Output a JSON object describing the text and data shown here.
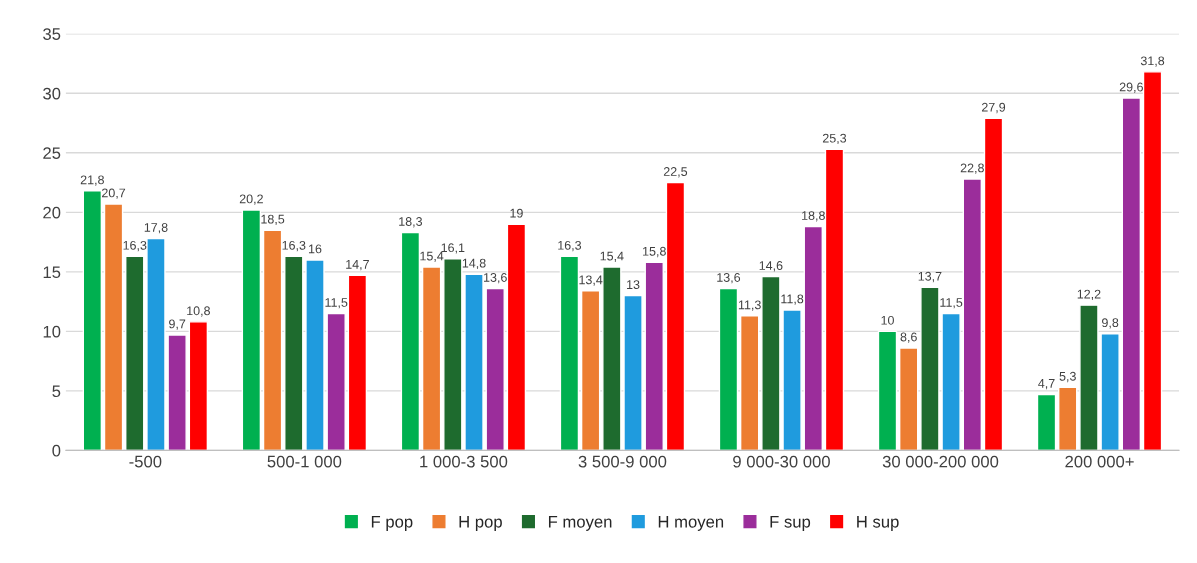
{
  "chart_data": {
    "type": "bar",
    "categories": [
      "-500",
      "500-1 000",
      "1 000-3 500",
      "3 500-9 000",
      "9 000-30 000",
      "30 000-200 000",
      "200 000+"
    ],
    "series": [
      {
        "name": "F pop",
        "color": "#00b050",
        "values": [
          21.8,
          20.2,
          18.3,
          16.3,
          13.6,
          10,
          4.7
        ],
        "value_labels": [
          "21,8",
          "20,2",
          "18,3",
          "16,3",
          "13,6",
          "10",
          "4,7"
        ]
      },
      {
        "name": "H pop",
        "color": "#ed7d31",
        "values": [
          20.7,
          18.5,
          15.4,
          13.4,
          11.3,
          8.6,
          5.3
        ],
        "value_labels": [
          "20,7",
          "18,5",
          "15,4",
          "13,4",
          "11,3",
          "8,6",
          "5,3"
        ]
      },
      {
        "name": "F moyen",
        "color": "#1e6b2e",
        "values": [
          16.3,
          16.3,
          16.1,
          15.4,
          14.6,
          13.7,
          12.2
        ],
        "value_labels": [
          "16,3",
          "16,3",
          "16,1",
          "15,4",
          "14,6",
          "13,7",
          "12,2"
        ]
      },
      {
        "name": "H moyen",
        "color": "#1f9bde",
        "values": [
          17.8,
          16,
          14.8,
          13,
          11.8,
          11.5,
          9.8
        ],
        "value_labels": [
          "17,8",
          "16",
          "14,8",
          "13",
          "11,8",
          "11,5",
          "9,8"
        ]
      },
      {
        "name": "F sup",
        "color": "#9b2d9b",
        "values": [
          9.7,
          11.5,
          13.6,
          15.8,
          18.8,
          22.8,
          29.6
        ],
        "value_labels": [
          "9,7",
          "11,5",
          "13,6",
          "15,8",
          "18,8",
          "22,8",
          "29,6"
        ]
      },
      {
        "name": "H sup",
        "color": "#ff0000",
        "values": [
          10.8,
          14.7,
          19,
          22.5,
          25.3,
          27.9,
          31.8
        ],
        "value_labels": [
          "10,8",
          "14,7",
          "19",
          "22,5",
          "25,3",
          "27,9",
          "31,8"
        ]
      }
    ],
    "ylim": [
      0,
      35
    ],
    "yticks": [
      0,
      5,
      10,
      15,
      20,
      25,
      30,
      35
    ],
    "grid": "y",
    "legend": "bottom"
  }
}
